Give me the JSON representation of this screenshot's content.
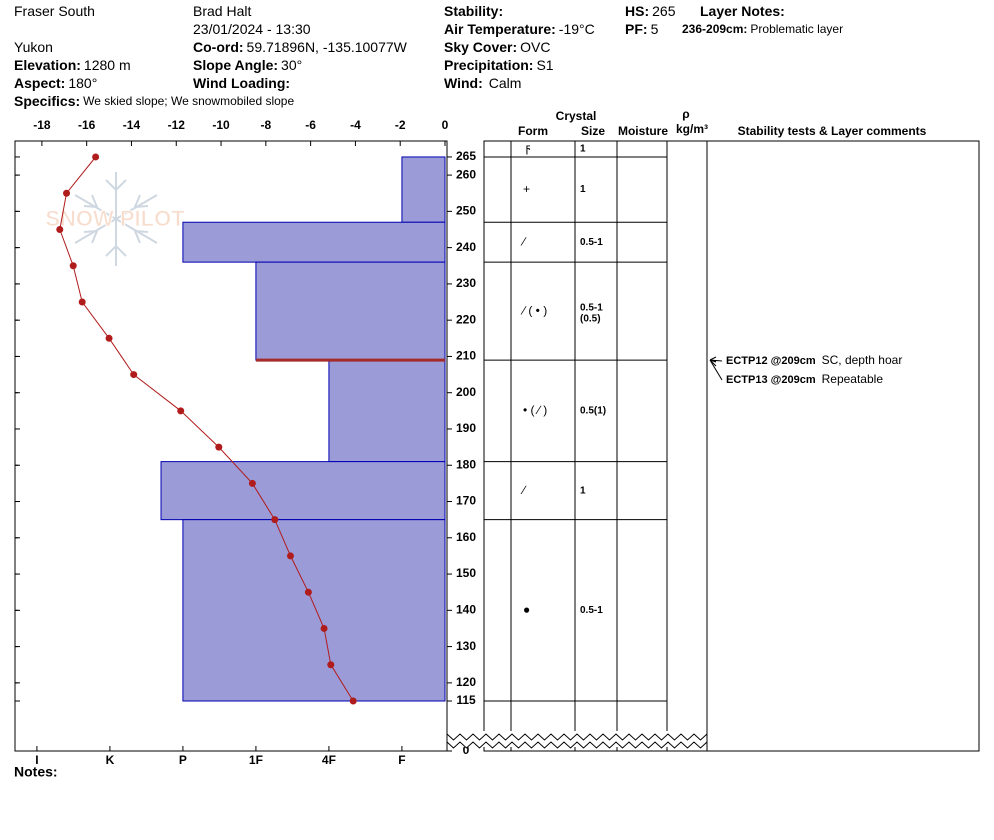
{
  "header": {
    "fields": [
      {
        "value": "Fraser South"
      },
      {
        "value": "Brad Halt"
      },
      {
        "label": "Stability:"
      },
      {
        "label": "HS:",
        "value": "265"
      },
      {
        "label": "Layer Notes:"
      },
      {
        "value": "23/01/2024 - 13:30"
      },
      {
        "label": "Air Temperature:",
        "value": "-19°C"
      },
      {
        "label": "PF:",
        "value": "5"
      },
      {
        "label": "236-209cm:",
        "value": "Problematic layer"
      },
      {
        "value": "Yukon"
      },
      {
        "label": "Co-ord:",
        "value": "59.71896N, -135.10077W"
      },
      {
        "label": "Sky Cover:",
        "value": "OVC"
      },
      {
        "label": "Elevation:",
        "value": "1280 m"
      },
      {
        "label": "Slope Angle:",
        "value": "30°"
      },
      {
        "label": "Precipitation:",
        "value": "S1"
      },
      {
        "label": "Aspect:",
        "value": "180°"
      },
      {
        "label": "Wind Loading:"
      },
      {
        "label": "Wind:",
        "value": "Calm"
      },
      {
        "label": "Specifics:",
        "value": "We skied slope; We snowmobiled slope"
      }
    ]
  },
  "watermark": "SNOW PILOT",
  "notes": "Notes:",
  "chart_data": [
    {
      "type": "bar",
      "orientation": "horizontal",
      "layer_tops": [
        265,
        247,
        236,
        209,
        181,
        165
      ],
      "layer_bottoms": [
        247,
        236,
        209,
        181,
        165,
        115
      ],
      "values": [
        1,
        4,
        3,
        2,
        4.3,
        4
      ],
      "color": "#9b9bd8",
      "edge_color": "#0000b0",
      "highlight_color": "#a52a2a",
      "xlim": [
        6.3,
        0.41
      ],
      "xticks": [
        {
          "value": 6,
          "label": "I"
        },
        {
          "value": 5,
          "label": "K"
        },
        {
          "value": 4,
          "label": "P"
        },
        {
          "value": 3,
          "label": "1F"
        },
        {
          "value": 2,
          "label": "4F"
        },
        {
          "value": 1,
          "label": "F"
        }
      ],
      "ylim": [
        0,
        269.4
      ],
      "y_break": [
        0,
        115
      ],
      "yticks": [
        265,
        260,
        250,
        240,
        230,
        220,
        210,
        200,
        190,
        180,
        170,
        160,
        150,
        140,
        130,
        120,
        115,
        0
      ]
    },
    {
      "type": "line",
      "x": [
        -15.6,
        -16.9,
        -17.2,
        -16.6,
        -16.2,
        -15.0,
        -13.9,
        -11.8,
        -10.1,
        -8.6,
        -7.6,
        -6.9,
        -6.1,
        -5.4,
        -5.1,
        -4.1
      ],
      "y": [
        265,
        255,
        245,
        235,
        225,
        215,
        205,
        195,
        185,
        175,
        165,
        155,
        145,
        135,
        125,
        115
      ],
      "color": "#b01c1c",
      "xlim": [
        -19.2,
        0
      ],
      "xticks": [
        -18,
        -16,
        -14,
        -12,
        -10,
        -8,
        -6,
        -4,
        -2,
        0
      ]
    }
  ],
  "table": {
    "crystal": "Crystal",
    "form": "Form",
    "size": "Size",
    "moisture": "Moisture",
    "rho": "ρ",
    "density_unit": "kg/m³",
    "comments": "Stability tests & Layer comments",
    "surface": {
      "form": "ϝ",
      "size": "1"
    },
    "rows": [
      {
        "form": "+",
        "size": "1"
      },
      {
        "form": "∕",
        "size": "0.5-1"
      },
      {
        "form": "∕ ( • )",
        "size": "0.5-1",
        "size_note": "(0.5)"
      },
      {
        "form": "• ( ∕ )",
        "size": "0.5(1)"
      },
      {
        "form": "∕",
        "size": "1"
      },
      {
        "form": "●",
        "size": "0.5-1"
      }
    ],
    "tests": [
      {
        "name": "ECTP12 @209cm",
        "comment": "SC, depth hoar"
      },
      {
        "name": "ECTP13 @209cm",
        "comment": "Repeatable"
      }
    ]
  }
}
